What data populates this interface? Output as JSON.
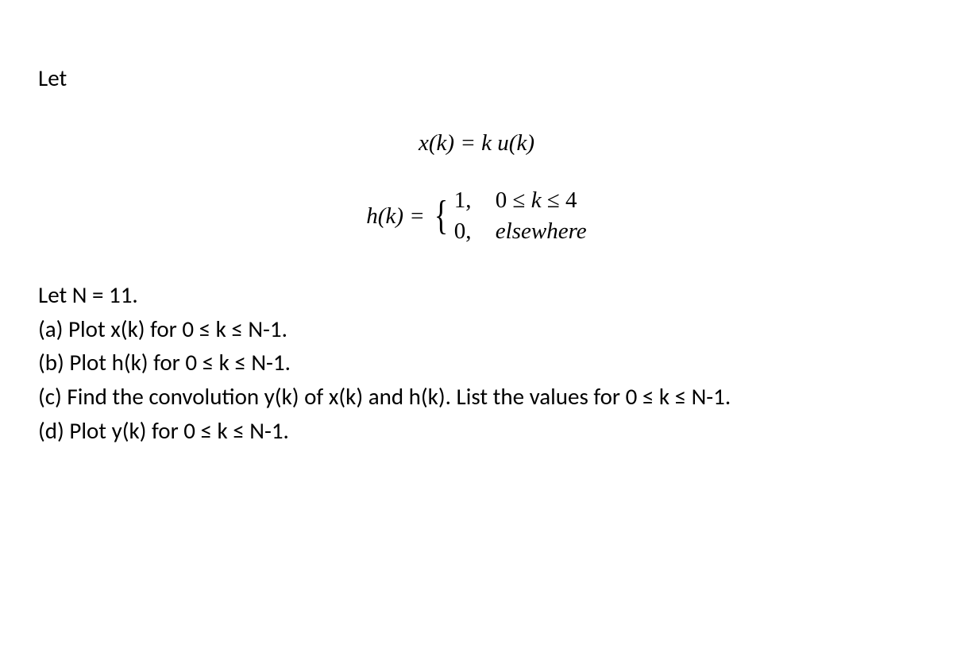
{
  "intro": "Let",
  "equation_x": "x(k) = k u(k)",
  "equation_h_left": "h(k) = ",
  "case1_val": "1,",
  "case1_cond": "0 ≤ k ≤ 4",
  "case2_val": "0,",
  "case2_cond": "elsewhere",
  "line_n": "Let N = 11.",
  "line_a": "(a) Plot x(k) for 0 ≤ k ≤ N-1.",
  "line_b": "(b) Plot h(k) for 0 ≤ k ≤ N-1.",
  "line_c": "(c) Find the convolution y(k) of x(k) and h(k). List the values for 0 ≤ k ≤ N-1.",
  "line_d": "(d) Plot y(k) for 0 ≤ k ≤ N-1."
}
